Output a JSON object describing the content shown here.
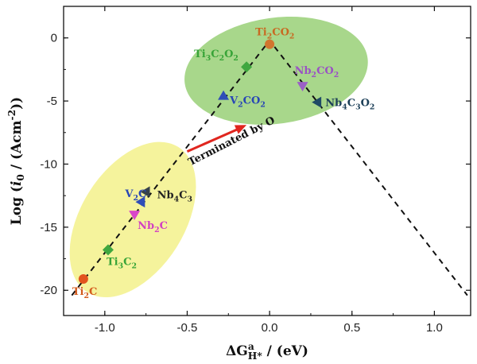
{
  "chart_data": {
    "type": "scatter",
    "title": "",
    "xlim": [
      -1.25,
      1.22
    ],
    "ylim": [
      -22,
      2.5
    ],
    "xticks": [
      "-1.0",
      "-0.5",
      "0.0",
      "0.5",
      "1.0"
    ],
    "yticks": [
      "0",
      "-5",
      "-10",
      "-15",
      "-20"
    ],
    "xlabel": {
      "main": "ΔG",
      "sup": "a",
      "sub": "H*",
      "rest": " / (eV)"
    },
    "ylabel": {
      "pre": "Log (",
      "var": "i",
      "varsub": "0",
      "mid": " / (Acm",
      "sup": "-2",
      "post": "))"
    },
    "volcano_line": [
      [
        -1.2,
        -20.4
      ],
      [
        0.0,
        -0.2
      ],
      [
        1.2,
        -20.4
      ]
    ],
    "regions": [
      {
        "name": "bare",
        "color": "#f2f080",
        "center": [
          -0.83,
          -14.4
        ],
        "rx_data": 0.52,
        "ry_data": 4.1,
        "angle": -58
      },
      {
        "name": "o-terminated",
        "color": "#8fcc6a",
        "center": [
          0.04,
          -2.6
        ],
        "rx_data": 0.56,
        "ry_data": 4.2,
        "angle": -8
      }
    ],
    "points": [
      {
        "id": "ti2c",
        "label": "Ti",
        "sub1": "2",
        "rest": "C",
        "x": -1.13,
        "y": -19.1,
        "marker": "circle",
        "color": "#e2531e",
        "label_color": "#d35b1e"
      },
      {
        "id": "ti3c2",
        "label": "Ti",
        "sub1": "3",
        "rest": "C",
        "sub2": "2",
        "x": -0.98,
        "y": -16.8,
        "marker": "diamond",
        "color": "#3fa73f",
        "label_color": "#38a438"
      },
      {
        "id": "nb2c",
        "label": "Nb",
        "sub1": "2",
        "rest": "C",
        "x": -0.82,
        "y": -14.0,
        "marker": "tri-down",
        "color": "#d946c9",
        "label_color": "#d23fc2"
      },
      {
        "id": "v2c",
        "label": "V",
        "sub1": "2",
        "rest": "C",
        "x": -0.78,
        "y": -13.0,
        "marker": "tri-left",
        "color": "#2f4db8",
        "label_color": "#2846b5"
      },
      {
        "id": "nb4c3",
        "label": "Nb",
        "sub1": "4",
        "rest": "C",
        "sub2": "3",
        "x": -0.75,
        "y": -12.2,
        "marker": "tri-left",
        "color": "#37424a",
        "label_color": "#222"
      },
      {
        "id": "v2co2",
        "label": "V",
        "sub1": "2",
        "rest": "CO",
        "sub2": "2",
        "x": -0.28,
        "y": -4.6,
        "marker": "tri-up",
        "color": "#2f4db8",
        "label_color": "#2846b5"
      },
      {
        "id": "ti3c2o2",
        "label": "Ti",
        "sub1": "3",
        "rest": "C",
        "sub2": "2",
        "rest2": "O",
        "sub3": "2",
        "x": -0.14,
        "y": -2.3,
        "marker": "diamond",
        "color": "#3fa73f",
        "label_color": "#38a438"
      },
      {
        "id": "ti2co2",
        "label": "Ti",
        "sub1": "2",
        "rest": "CO",
        "sub2": "2",
        "x": 0.0,
        "y": -0.5,
        "marker": "circle",
        "color": "#d2752e",
        "label_color": "#c86a22"
      },
      {
        "id": "nb2co2",
        "label": "Nb",
        "sub1": "2",
        "rest": "CO",
        "sub2": "2",
        "x": 0.2,
        "y": -3.8,
        "marker": "tri-down",
        "color": "#9b5fc6",
        "label_color": "#9a52c4"
      },
      {
        "id": "nb4c3o2",
        "label": "Nb",
        "sub1": "4",
        "rest": "C",
        "sub2": "3",
        "rest2": "O",
        "sub3": "2",
        "x": 0.29,
        "y": -5.1,
        "marker": "tri-left",
        "color": "#1f4a66",
        "label_color": "#1c3f58"
      }
    ],
    "annotation": {
      "text": "Terminated by O",
      "arrow_from": [
        -0.5,
        -9.0
      ],
      "arrow_to": [
        -0.14,
        -6.9
      ],
      "arrow_color": "#e0261f"
    }
  }
}
